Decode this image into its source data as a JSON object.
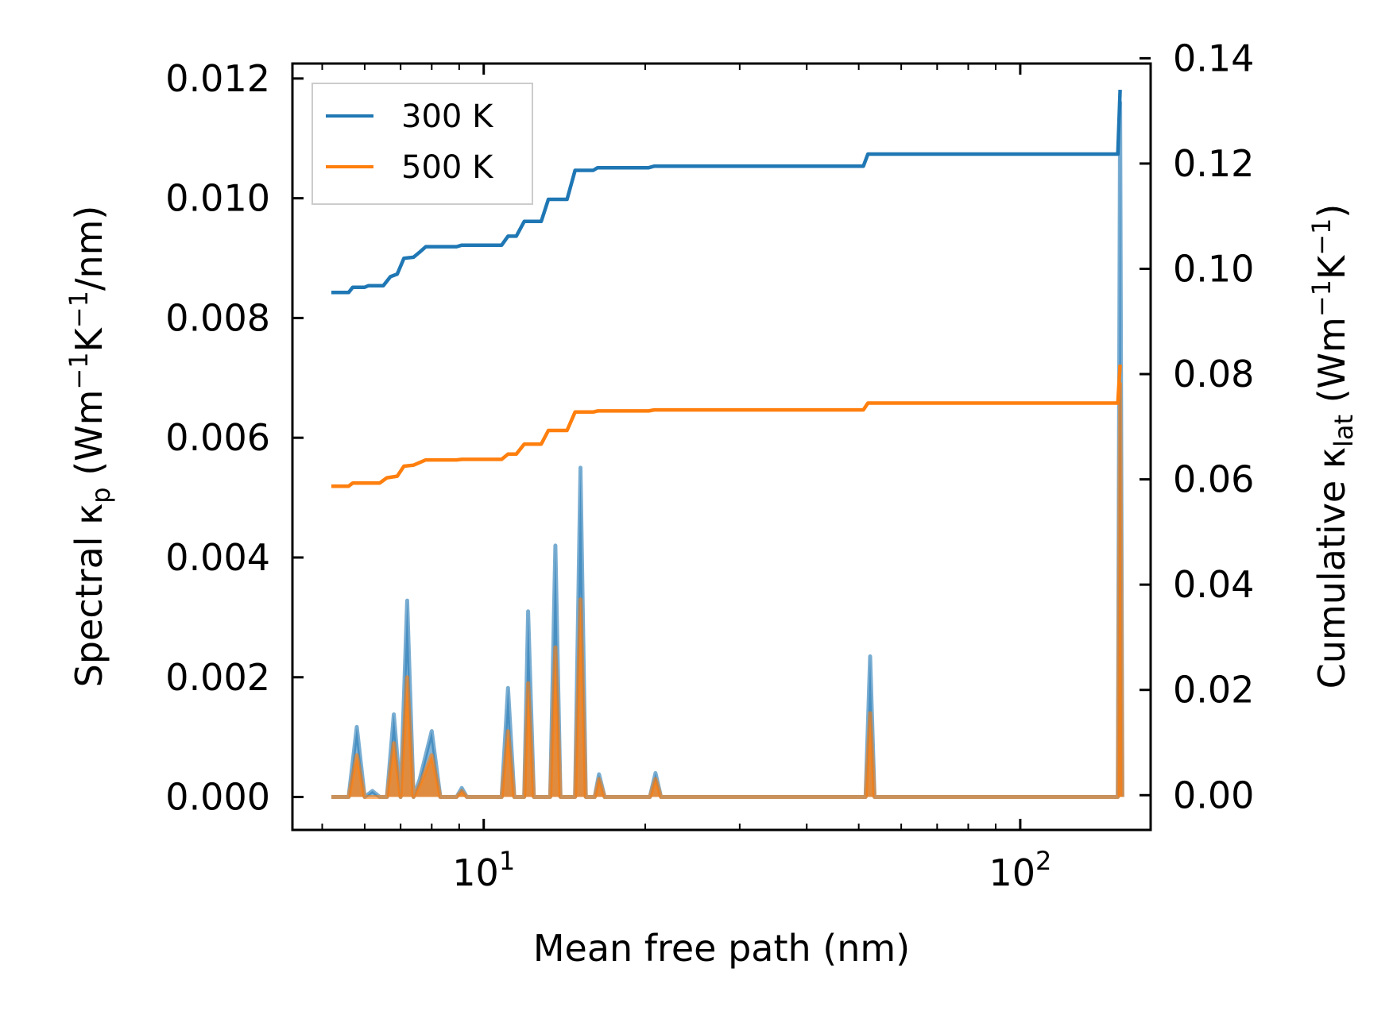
{
  "chart_data": {
    "type": "line",
    "xlabel": "Mean free path (nm)",
    "ylabel_left": {
      "prefix": "Spectral κ",
      "sub": "p",
      "unit_open": " (Wm",
      "sup1": "−1",
      "unit_mid": "K",
      "sup2": "−1",
      "unit_close": "/nm)"
    },
    "ylabel_right": {
      "prefix": "Cumulative κ",
      "sub": "lat",
      "unit_open": " (Wm",
      "sup1": "−1",
      "unit_mid": "K",
      "sup2": "−1",
      "unit_close": ")"
    },
    "xscale": "log",
    "xlim": [
      4.4,
      175
    ],
    "ylim_left": [
      -0.00055,
      0.01225
    ],
    "ylim_right": [
      -0.0066,
      0.139
    ],
    "x_ticks": [
      {
        "value": 10,
        "base": "10",
        "exp": "1"
      },
      {
        "value": 100,
        "base": "10",
        "exp": "2"
      }
    ],
    "y_ticks_left": [
      "0.000",
      "0.002",
      "0.004",
      "0.006",
      "0.008",
      "0.010",
      "0.012"
    ],
    "y_ticks_right": [
      "0.00",
      "0.02",
      "0.04",
      "0.06",
      "0.08",
      "0.10",
      "0.12",
      "0.14"
    ],
    "legend_position": "top-left",
    "series": [
      {
        "name": "300 K",
        "color": "#1f77b4",
        "spectral": [
          [
            5.2,
            0
          ],
          [
            5.6,
            0
          ],
          [
            5.8,
            0.00117
          ],
          [
            6.0,
            0
          ],
          [
            6.2,
            0.0001
          ],
          [
            6.4,
            0
          ],
          [
            6.6,
            0
          ],
          [
            6.8,
            0.00138
          ],
          [
            7.0,
            0
          ],
          [
            7.2,
            0.00328
          ],
          [
            7.4,
            0
          ],
          [
            7.6,
            0.0003
          ],
          [
            8.0,
            0.0011
          ],
          [
            8.3,
            0
          ],
          [
            8.9,
            0
          ],
          [
            9.1,
            0.00015
          ],
          [
            9.3,
            0
          ],
          [
            10.8,
            0
          ],
          [
            11.1,
            0.00182
          ],
          [
            11.4,
            0
          ],
          [
            11.9,
            0
          ],
          [
            12.1,
            0.0031
          ],
          [
            12.4,
            0
          ],
          [
            13.3,
            0
          ],
          [
            13.6,
            0.0042
          ],
          [
            13.9,
            0
          ],
          [
            14.8,
            0
          ],
          [
            15.15,
            0.0055
          ],
          [
            15.5,
            0
          ],
          [
            16.1,
            0
          ],
          [
            16.4,
            0.00038
          ],
          [
            16.8,
            0
          ],
          [
            20.4,
            0
          ],
          [
            20.9,
            0.0004
          ],
          [
            21.4,
            0
          ],
          [
            51.5,
            0
          ],
          [
            52.5,
            0.00235
          ],
          [
            53.5,
            0
          ],
          [
            152,
            0
          ],
          [
            153.5,
            0.0116
          ],
          [
            155,
            0
          ]
        ],
        "cumulative": [
          [
            5.2,
            0.0955
          ],
          [
            5.6,
            0.0955
          ],
          [
            5.7,
            0.0965
          ],
          [
            6.0,
            0.0965
          ],
          [
            6.1,
            0.0968
          ],
          [
            6.5,
            0.0968
          ],
          [
            6.7,
            0.0985
          ],
          [
            6.9,
            0.099
          ],
          [
            7.1,
            0.102
          ],
          [
            7.4,
            0.1022
          ],
          [
            7.6,
            0.1032
          ],
          [
            7.8,
            0.1042
          ],
          [
            8.9,
            0.1042
          ],
          [
            9.1,
            0.1045
          ],
          [
            10.8,
            0.1045
          ],
          [
            11.1,
            0.1062
          ],
          [
            11.5,
            0.1062
          ],
          [
            11.9,
            0.109
          ],
          [
            12.8,
            0.109
          ],
          [
            13.2,
            0.1132
          ],
          [
            14.3,
            0.1132
          ],
          [
            14.8,
            0.1187
          ],
          [
            16.0,
            0.1187
          ],
          [
            16.3,
            0.1192
          ],
          [
            20.3,
            0.1192
          ],
          [
            20.8,
            0.1195
          ],
          [
            51.0,
            0.1195
          ],
          [
            52.0,
            0.1218
          ],
          [
            152,
            0.1218
          ],
          [
            153.5,
            0.134
          ]
        ]
      },
      {
        "name": "500 K",
        "color": "#ff7f0e",
        "spectral": [
          [
            5.2,
            0
          ],
          [
            5.6,
            0
          ],
          [
            5.8,
            0.0007
          ],
          [
            6.0,
            0
          ],
          [
            6.4,
            0
          ],
          [
            6.6,
            0
          ],
          [
            6.8,
            0.0009
          ],
          [
            7.0,
            0
          ],
          [
            7.2,
            0.002
          ],
          [
            7.4,
            0
          ],
          [
            7.6,
            0.0002
          ],
          [
            8.0,
            0.0007
          ],
          [
            8.3,
            0
          ],
          [
            8.9,
            0
          ],
          [
            9.1,
            0.0001
          ],
          [
            9.3,
            0
          ],
          [
            10.8,
            0
          ],
          [
            11.1,
            0.0011
          ],
          [
            11.4,
            0
          ],
          [
            11.9,
            0
          ],
          [
            12.1,
            0.0019
          ],
          [
            12.4,
            0
          ],
          [
            13.3,
            0
          ],
          [
            13.6,
            0.0025
          ],
          [
            13.9,
            0
          ],
          [
            14.8,
            0
          ],
          [
            15.15,
            0.0033
          ],
          [
            15.5,
            0
          ],
          [
            16.1,
            0
          ],
          [
            16.4,
            0.0003
          ],
          [
            16.8,
            0
          ],
          [
            20.4,
            0
          ],
          [
            20.9,
            0.0003
          ],
          [
            21.4,
            0
          ],
          [
            51.5,
            0
          ],
          [
            52.5,
            0.0014
          ],
          [
            53.5,
            0
          ],
          [
            152,
            0
          ],
          [
            153.5,
            0.0069
          ],
          [
            155,
            0
          ]
        ],
        "cumulative": [
          [
            5.2,
            0.0587
          ],
          [
            5.6,
            0.0587
          ],
          [
            5.7,
            0.0593
          ],
          [
            6.4,
            0.0593
          ],
          [
            6.6,
            0.0603
          ],
          [
            6.9,
            0.0606
          ],
          [
            7.1,
            0.0625
          ],
          [
            7.4,
            0.0627
          ],
          [
            7.8,
            0.0637
          ],
          [
            8.9,
            0.0637
          ],
          [
            9.1,
            0.0638
          ],
          [
            10.8,
            0.0638
          ],
          [
            11.1,
            0.0648
          ],
          [
            11.5,
            0.0648
          ],
          [
            11.9,
            0.0667
          ],
          [
            12.8,
            0.0667
          ],
          [
            13.2,
            0.0693
          ],
          [
            14.3,
            0.0693
          ],
          [
            14.8,
            0.0728
          ],
          [
            16.0,
            0.0728
          ],
          [
            16.3,
            0.073
          ],
          [
            20.3,
            0.073
          ],
          [
            20.8,
            0.0732
          ],
          [
            51.0,
            0.0732
          ],
          [
            52.0,
            0.0745
          ],
          [
            152,
            0.0745
          ],
          [
            153.5,
            0.0818
          ]
        ]
      }
    ]
  }
}
